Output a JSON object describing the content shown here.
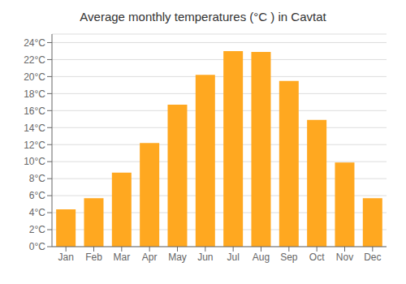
{
  "chart_data": {
    "type": "bar",
    "title": "Average monthly temperatures (°C ) in Cavtat",
    "categories": [
      "Jan",
      "Feb",
      "Mar",
      "Apr",
      "May",
      "Jun",
      "Jul",
      "Aug",
      "Sep",
      "Oct",
      "Nov",
      "Dec"
    ],
    "values": [
      4.4,
      5.7,
      8.7,
      12.2,
      16.7,
      20.2,
      23.0,
      22.9,
      19.5,
      14.9,
      9.9,
      5.7
    ],
    "color": "#FFA820",
    "ylim": [
      0,
      25
    ],
    "yticks": [
      {
        "value": 0,
        "label": "0°C"
      },
      {
        "value": 2,
        "label": "2°C"
      },
      {
        "value": 4,
        "label": "4°C"
      },
      {
        "value": 6,
        "label": "6°C"
      },
      {
        "value": 8,
        "label": "8°C"
      },
      {
        "value": 10,
        "label": "10°C"
      },
      {
        "value": 12,
        "label": "12°C"
      },
      {
        "value": 14,
        "label": "14°C"
      },
      {
        "value": 16,
        "label": "16°C"
      },
      {
        "value": 18,
        "label": "18°C"
      },
      {
        "value": 20,
        "label": "20°C"
      },
      {
        "value": 22,
        "label": "22°C"
      },
      {
        "value": 24,
        "label": "24°C"
      }
    ],
    "grid": true
  }
}
